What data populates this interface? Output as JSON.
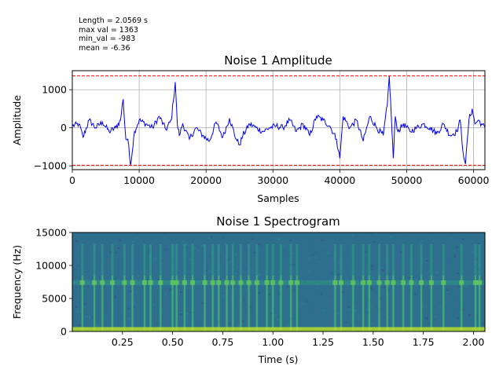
{
  "stats": {
    "length": "Length = 2.0569 s",
    "max_val": "max val = 1363",
    "min_val": "min_val = -983",
    "mean": "mean = -6.36"
  },
  "colors": {
    "signal": "#0000ee",
    "threshold": "#ff0000",
    "grid": "#b0b0b0"
  },
  "chart_data": [
    {
      "type": "line",
      "title": "Noise  1 Amplitude",
      "xlabel": "Samples",
      "ylabel": "Amplitude",
      "xlim": [
        0,
        61700
      ],
      "ylim": [
        -1100,
        1500
      ],
      "grid": true,
      "xticks": [
        0,
        10000,
        20000,
        30000,
        40000,
        50000,
        60000
      ],
      "xtick_labels": [
        "0",
        "10000",
        "20000",
        "30000",
        "40000",
        "50000",
        "60000"
      ],
      "yticks": [
        -1000,
        0,
        1000
      ],
      "ytick_labels": [
        "−1000",
        "0",
        "1000"
      ],
      "hlines": [
        1363,
        -983
      ],
      "series": [
        {
          "x": [
            0,
            1000,
            1600,
            2500,
            3500,
            4500,
            5500,
            6500,
            7200,
            7600,
            8000,
            8300,
            8700,
            9300,
            10000,
            11000,
            12000,
            13000,
            14000,
            14800,
            15100,
            15400,
            15700,
            16000,
            16500,
            17500,
            18500,
            19500,
            20500,
            21500,
            22500,
            23500,
            24500,
            25000,
            25500,
            26500,
            27500,
            28500,
            29500,
            30500,
            31500,
            32500,
            33500,
            34500,
            35500,
            36500,
            37500,
            38500,
            39500,
            40000,
            40500,
            41500,
            42500,
            43500,
            44500,
            45500,
            46500,
            47100,
            47400,
            47700,
            48000,
            48300,
            48700,
            49500,
            50500,
            51500,
            52500,
            53500,
            54500,
            55500,
            56500,
            57500,
            58000,
            58400,
            58800,
            59300,
            59800,
            60200,
            60700,
            61200,
            61700
          ],
          "y": [
            50,
            100,
            -250,
            200,
            0,
            150,
            -100,
            0,
            200,
            750,
            -300,
            -300,
            -983,
            -100,
            200,
            100,
            0,
            300,
            -50,
            200,
            700,
            1200,
            100,
            -200,
            100,
            -300,
            0,
            -200,
            -350,
            150,
            -250,
            250,
            -300,
            -450,
            -200,
            100,
            0,
            -100,
            0,
            50,
            0,
            200,
            -100,
            100,
            -200,
            300,
            200,
            50,
            -300,
            -800,
            300,
            0,
            200,
            -350,
            300,
            0,
            -200,
            600,
            1363,
            300,
            -800,
            300,
            -100,
            100,
            -100,
            0,
            100,
            0,
            -150,
            100,
            -200,
            -100,
            200,
            -600,
            -950,
            200,
            500,
            100,
            200,
            100,
            0
          ]
        }
      ]
    },
    {
      "type": "heatmap",
      "title": "Noise  1 Spectrogram",
      "xlabel": "Time (s)",
      "ylabel": "Frequency (Hz)",
      "xlim": [
        0,
        2.0569
      ],
      "ylim": [
        0,
        15000
      ],
      "xticks": [
        0.25,
        0.5,
        0.75,
        1.0,
        1.25,
        1.5,
        1.75,
        2.0
      ],
      "xtick_labels": [
        "0.25",
        "0.50",
        "0.75",
        "1.00",
        "1.25",
        "1.50",
        "1.75",
        "2.00"
      ],
      "yticks": [
        0,
        5000,
        10000,
        15000
      ],
      "ytick_labels": [
        "0",
        "5000",
        "10000",
        "15000"
      ],
      "tonal_band_hz": 7400,
      "energy_band_hz": 300,
      "bursts_s": [
        0.05,
        0.11,
        0.15,
        0.2,
        0.26,
        0.3,
        0.36,
        0.39,
        0.44,
        0.5,
        0.52,
        0.56,
        0.6,
        0.66,
        0.7,
        0.73,
        0.77,
        0.8,
        0.84,
        0.88,
        0.92,
        0.97,
        1.0,
        1.04,
        1.09,
        1.12,
        1.31,
        1.34,
        1.4,
        1.45,
        1.48,
        1.53,
        1.57,
        1.6,
        1.65,
        1.69,
        1.74,
        1.79,
        1.85,
        1.94,
        2.01,
        2.03
      ]
    }
  ]
}
